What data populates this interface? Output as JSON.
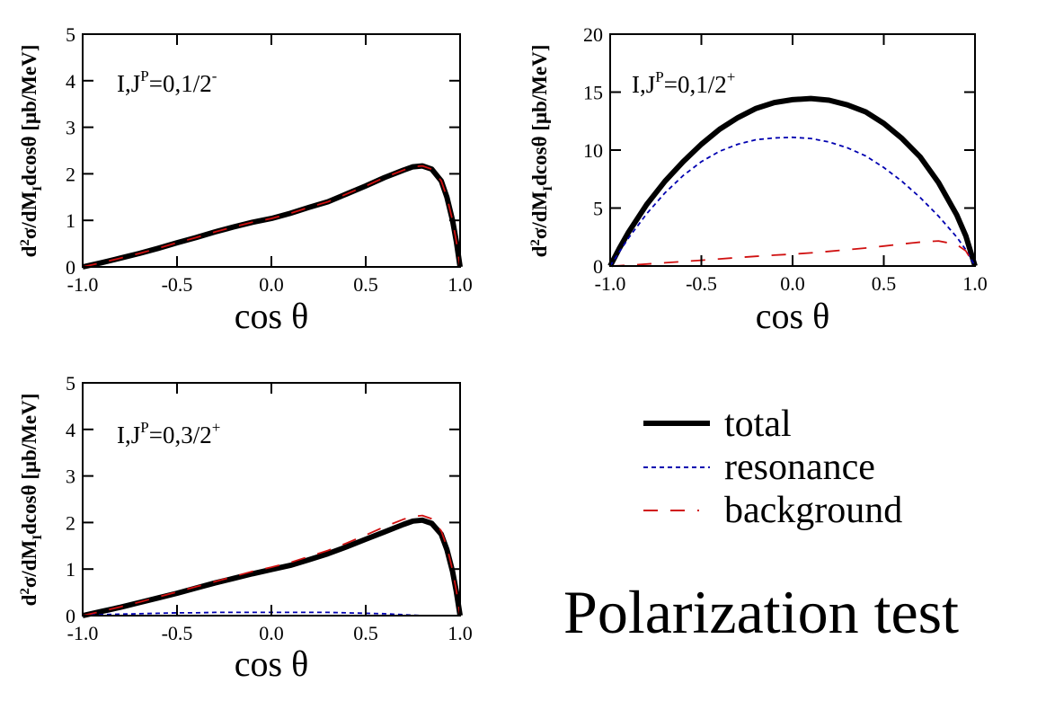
{
  "chart_data": [
    {
      "type": "line",
      "panel": "top-left",
      "annotation": {
        "main": "I,J",
        "sup": "P",
        "eq": "=0,1/2",
        "parity": "-"
      },
      "xlabel": "cos θ",
      "ylabel": {
        "pre": "d",
        "sup": "2",
        "mid": "σ/dM",
        "sub": "I",
        "post": "dcosθ [μb/MeV]"
      },
      "xlim": [
        -1.0,
        1.0
      ],
      "ylim": [
        0,
        5
      ],
      "xticks": [
        -1.0,
        -0.5,
        0.0,
        0.5,
        1.0
      ],
      "xtick_labels": [
        "-1.0",
        "-0.5",
        "0.0",
        "0.5",
        "1.0"
      ],
      "yticks": [
        0,
        1,
        2,
        3,
        4,
        5
      ],
      "ytick_labels": [
        "0",
        "1",
        "2",
        "3",
        "4",
        "5"
      ],
      "grid": false,
      "x": [
        -1.0,
        -0.9,
        -0.8,
        -0.7,
        -0.6,
        -0.5,
        -0.4,
        -0.3,
        -0.2,
        -0.1,
        0.0,
        0.1,
        0.2,
        0.3,
        0.4,
        0.5,
        0.6,
        0.7,
        0.75,
        0.8,
        0.85,
        0.9,
        0.93,
        0.96,
        0.98,
        1.0
      ],
      "series": [
        {
          "name": "total",
          "values": [
            0.0,
            0.09,
            0.19,
            0.29,
            0.4,
            0.52,
            0.63,
            0.75,
            0.86,
            0.96,
            1.04,
            1.15,
            1.28,
            1.4,
            1.57,
            1.74,
            1.92,
            2.08,
            2.15,
            2.17,
            2.1,
            1.85,
            1.5,
            1.0,
            0.55,
            0.0
          ]
        },
        {
          "name": "resonance",
          "values": [
            0.0,
            0.0,
            0.0,
            0.0,
            0.0,
            0.0,
            0.0,
            0.0,
            0.0,
            0.0,
            0.0,
            0.0,
            0.0,
            0.0,
            0.0,
            0.0,
            0.0,
            0.0,
            0.0,
            0.0,
            0.0,
            0.0,
            0.0,
            0.0,
            0.0,
            0.0
          ]
        },
        {
          "name": "background",
          "values": [
            0.0,
            0.09,
            0.19,
            0.29,
            0.4,
            0.52,
            0.63,
            0.75,
            0.86,
            0.96,
            1.04,
            1.15,
            1.28,
            1.4,
            1.57,
            1.74,
            1.92,
            2.08,
            2.15,
            2.17,
            2.1,
            1.85,
            1.5,
            1.0,
            0.55,
            0.0
          ]
        }
      ]
    },
    {
      "type": "line",
      "panel": "top-right",
      "annotation": {
        "main": "I,J",
        "sup": "P",
        "eq": "=0,1/2",
        "parity": "+"
      },
      "xlabel": "cos θ",
      "ylabel": {
        "pre": "d",
        "sup": "2",
        "mid": "σ/dM",
        "sub": "I",
        "post": "dcosθ [μb/MeV]"
      },
      "xlim": [
        -1.0,
        1.0
      ],
      "ylim": [
        0,
        20
      ],
      "xticks": [
        -1.0,
        -0.5,
        0.0,
        0.5,
        1.0
      ],
      "xtick_labels": [
        "-1.0",
        "-0.5",
        "0.0",
        "0.5",
        "1.0"
      ],
      "yticks": [
        0,
        5,
        10,
        15,
        20
      ],
      "ytick_labels": [
        "0",
        "5",
        "10",
        "15",
        "20"
      ],
      "grid": false,
      "x": [
        -1.0,
        -0.95,
        -0.9,
        -0.8,
        -0.7,
        -0.6,
        -0.5,
        -0.4,
        -0.3,
        -0.2,
        -0.1,
        0.0,
        0.1,
        0.2,
        0.3,
        0.4,
        0.5,
        0.6,
        0.7,
        0.8,
        0.9,
        0.95,
        1.0
      ],
      "series": [
        {
          "name": "total",
          "values": [
            0.0,
            1.5,
            2.9,
            5.3,
            7.3,
            9.0,
            10.5,
            11.8,
            12.8,
            13.6,
            14.1,
            14.35,
            14.45,
            14.3,
            13.9,
            13.3,
            12.3,
            11.0,
            9.4,
            7.2,
            4.4,
            2.6,
            0.0
          ]
        },
        {
          "name": "resonance",
          "values": [
            0.0,
            1.2,
            2.4,
            4.5,
            6.3,
            7.8,
            9.0,
            9.9,
            10.5,
            10.9,
            11.05,
            11.1,
            11.0,
            10.7,
            10.2,
            9.5,
            8.5,
            7.3,
            5.9,
            4.3,
            2.5,
            1.4,
            0.0
          ]
        },
        {
          "name": "background",
          "values": [
            0.0,
            0.03,
            0.07,
            0.17,
            0.28,
            0.39,
            0.5,
            0.61,
            0.73,
            0.84,
            0.94,
            1.02,
            1.13,
            1.26,
            1.4,
            1.55,
            1.72,
            1.9,
            2.06,
            2.16,
            1.85,
            1.3,
            0.0
          ]
        }
      ]
    },
    {
      "type": "line",
      "panel": "bottom-left",
      "annotation": {
        "main": "I,J",
        "sup": "P",
        "eq": "=0,3/2",
        "parity": "+"
      },
      "xlabel": "cos θ",
      "ylabel": {
        "pre": "d",
        "sup": "2",
        "mid": "σ/dM",
        "sub": "I",
        "post": "dcosθ [μb/MeV]"
      },
      "xlim": [
        -1.0,
        1.0
      ],
      "ylim": [
        0,
        5
      ],
      "xticks": [
        -1.0,
        -0.5,
        0.0,
        0.5,
        1.0
      ],
      "xtick_labels": [
        "-1.0",
        "-0.5",
        "0.0",
        "0.5",
        "1.0"
      ],
      "yticks": [
        0,
        1,
        2,
        3,
        4,
        5
      ],
      "ytick_labels": [
        "0",
        "1",
        "2",
        "3",
        "4",
        "5"
      ],
      "grid": false,
      "x": [
        -1.0,
        -0.9,
        -0.8,
        -0.7,
        -0.6,
        -0.5,
        -0.4,
        -0.3,
        -0.2,
        -0.1,
        0.0,
        0.1,
        0.2,
        0.3,
        0.4,
        0.5,
        0.6,
        0.7,
        0.75,
        0.8,
        0.85,
        0.9,
        0.93,
        0.96,
        0.98,
        1.0
      ],
      "series": [
        {
          "name": "total",
          "values": [
            0.0,
            0.09,
            0.18,
            0.28,
            0.38,
            0.48,
            0.59,
            0.7,
            0.8,
            0.9,
            0.99,
            1.08,
            1.2,
            1.33,
            1.48,
            1.64,
            1.8,
            1.96,
            2.03,
            2.05,
            1.98,
            1.75,
            1.42,
            0.95,
            0.52,
            0.0
          ]
        },
        {
          "name": "resonance",
          "values": [
            0.0,
            0.02,
            0.03,
            0.04,
            0.05,
            0.06,
            0.06,
            0.07,
            0.07,
            0.07,
            0.07,
            0.07,
            0.07,
            0.07,
            0.06,
            0.05,
            0.04,
            0.02,
            0.01,
            0.0,
            0.0,
            0.0,
            0.0,
            0.0,
            0.0,
            0.0
          ]
        },
        {
          "name": "background",
          "values": [
            0.0,
            0.09,
            0.19,
            0.29,
            0.4,
            0.51,
            0.62,
            0.73,
            0.84,
            0.95,
            1.04,
            1.14,
            1.27,
            1.4,
            1.56,
            1.73,
            1.91,
            2.07,
            2.13,
            2.15,
            2.08,
            1.82,
            1.48,
            0.98,
            0.54,
            0.0
          ]
        }
      ]
    }
  ],
  "legend": {
    "placement": "bottom-right",
    "entries": [
      {
        "name": "total",
        "label": "total",
        "color": "#000000",
        "style": "solid"
      },
      {
        "name": "resonance",
        "label": "resonance",
        "color": "#0000b0",
        "style": "short-dash"
      },
      {
        "name": "background",
        "label": "background",
        "color": "#d01010",
        "style": "long-dash"
      }
    ]
  },
  "title": "Polarization test",
  "colors": {
    "total": "#000000",
    "resonance": "#0000b0",
    "background": "#d01010",
    "axes": "#000000"
  }
}
